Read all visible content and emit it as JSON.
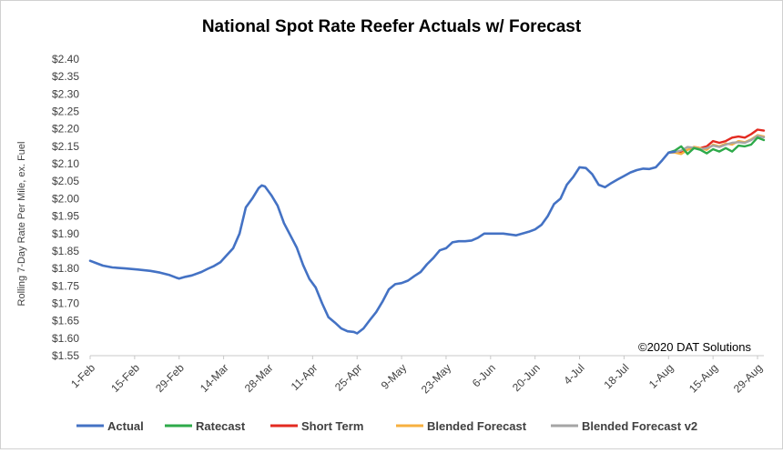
{
  "chart_data": {
    "type": "line",
    "title": "National Spot Rate Reefer Actuals w/ Forecast",
    "ylabel": "Rolling 7-Day Rate Per Mile, ex. Fuel",
    "xlabel": "",
    "annotation": "©2020 DAT Solutions",
    "ylim": [
      1.55,
      2.4
    ],
    "yticks": [
      "$1.55",
      "$1.60",
      "$1.65",
      "$1.70",
      "$1.75",
      "$1.80",
      "$1.85",
      "$1.90",
      "$1.95",
      "$2.00",
      "$2.05",
      "$2.10",
      "$2.15",
      "$2.20",
      "$2.25",
      "$2.30",
      "$2.35",
      "$2.40"
    ],
    "x_start": "2020-02-01",
    "x_end": "2020-08-31",
    "xticks": [
      {
        "date": "2020-02-01",
        "label": "1-Feb"
      },
      {
        "date": "2020-02-15",
        "label": "15-Feb"
      },
      {
        "date": "2020-02-29",
        "label": "29-Feb"
      },
      {
        "date": "2020-03-14",
        "label": "14-Mar"
      },
      {
        "date": "2020-03-28",
        "label": "28-Mar"
      },
      {
        "date": "2020-04-11",
        "label": "11-Apr"
      },
      {
        "date": "2020-04-25",
        "label": "25-Apr"
      },
      {
        "date": "2020-05-09",
        "label": "9-May"
      },
      {
        "date": "2020-05-23",
        "label": "23-May"
      },
      {
        "date": "2020-06-06",
        "label": "6-Jun"
      },
      {
        "date": "2020-06-20",
        "label": "20-Jun"
      },
      {
        "date": "2020-07-04",
        "label": "4-Jul"
      },
      {
        "date": "2020-07-18",
        "label": "18-Jul"
      },
      {
        "date": "2020-08-01",
        "label": "1-Aug"
      },
      {
        "date": "2020-08-15",
        "label": "15-Aug"
      },
      {
        "date": "2020-08-29",
        "label": "29-Aug"
      }
    ],
    "legend_position": "bottom",
    "grid": false,
    "series": [
      {
        "name": "Actual",
        "color": "#4472C4",
        "points": [
          [
            "2020-02-01",
            1.822
          ],
          [
            "2020-02-03",
            1.815
          ],
          [
            "2020-02-05",
            1.808
          ],
          [
            "2020-02-08",
            1.803
          ],
          [
            "2020-02-12",
            1.8
          ],
          [
            "2020-02-16",
            1.797
          ],
          [
            "2020-02-20",
            1.793
          ],
          [
            "2020-02-23",
            1.788
          ],
          [
            "2020-02-26",
            1.781
          ],
          [
            "2020-02-28",
            1.774
          ],
          [
            "2020-02-29",
            1.771
          ],
          [
            "2020-03-02",
            1.776
          ],
          [
            "2020-03-04",
            1.78
          ],
          [
            "2020-03-07",
            1.79
          ],
          [
            "2020-03-09",
            1.799
          ],
          [
            "2020-03-11",
            1.807
          ],
          [
            "2020-03-13",
            1.818
          ],
          [
            "2020-03-15",
            1.838
          ],
          [
            "2020-03-17",
            1.858
          ],
          [
            "2020-03-19",
            1.9
          ],
          [
            "2020-03-21",
            1.975
          ],
          [
            "2020-03-23",
            2.0
          ],
          [
            "2020-03-25",
            2.03
          ],
          [
            "2020-03-26",
            2.038
          ],
          [
            "2020-03-27",
            2.035
          ],
          [
            "2020-03-29",
            2.01
          ],
          [
            "2020-03-31",
            1.98
          ],
          [
            "2020-04-02",
            1.93
          ],
          [
            "2020-04-04",
            1.895
          ],
          [
            "2020-04-06",
            1.86
          ],
          [
            "2020-04-08",
            1.81
          ],
          [
            "2020-04-10",
            1.77
          ],
          [
            "2020-04-12",
            1.745
          ],
          [
            "2020-04-14",
            1.7
          ],
          [
            "2020-04-16",
            1.66
          ],
          [
            "2020-04-18",
            1.645
          ],
          [
            "2020-04-20",
            1.628
          ],
          [
            "2020-04-22",
            1.62
          ],
          [
            "2020-04-24",
            1.618
          ],
          [
            "2020-04-25",
            1.614
          ],
          [
            "2020-04-27",
            1.628
          ],
          [
            "2020-04-29",
            1.652
          ],
          [
            "2020-05-01",
            1.675
          ],
          [
            "2020-05-03",
            1.705
          ],
          [
            "2020-05-05",
            1.74
          ],
          [
            "2020-05-07",
            1.755
          ],
          [
            "2020-05-09",
            1.758
          ],
          [
            "2020-05-11",
            1.765
          ],
          [
            "2020-05-13",
            1.778
          ],
          [
            "2020-05-15",
            1.79
          ],
          [
            "2020-05-17",
            1.812
          ],
          [
            "2020-05-19",
            1.83
          ],
          [
            "2020-05-21",
            1.852
          ],
          [
            "2020-05-23",
            1.858
          ],
          [
            "2020-05-25",
            1.875
          ],
          [
            "2020-05-27",
            1.878
          ],
          [
            "2020-05-29",
            1.878
          ],
          [
            "2020-05-31",
            1.88
          ],
          [
            "2020-06-02",
            1.888
          ],
          [
            "2020-06-04",
            1.9
          ],
          [
            "2020-06-06",
            1.9
          ],
          [
            "2020-06-10",
            1.9
          ],
          [
            "2020-06-14",
            1.895
          ],
          [
            "2020-06-18",
            1.905
          ],
          [
            "2020-06-20",
            1.912
          ],
          [
            "2020-06-22",
            1.925
          ],
          [
            "2020-06-24",
            1.95
          ],
          [
            "2020-06-26",
            1.985
          ],
          [
            "2020-06-28",
            2.0
          ],
          [
            "2020-06-30",
            2.04
          ],
          [
            "2020-07-02",
            2.062
          ],
          [
            "2020-07-04",
            2.09
          ],
          [
            "2020-07-06",
            2.088
          ],
          [
            "2020-07-08",
            2.07
          ],
          [
            "2020-07-10",
            2.04
          ],
          [
            "2020-07-12",
            2.033
          ],
          [
            "2020-07-14",
            2.045
          ],
          [
            "2020-07-16",
            2.055
          ],
          [
            "2020-07-18",
            2.065
          ],
          [
            "2020-07-20",
            2.075
          ],
          [
            "2020-07-22",
            2.082
          ],
          [
            "2020-07-24",
            2.086
          ],
          [
            "2020-07-26",
            2.085
          ],
          [
            "2020-07-28",
            2.09
          ],
          [
            "2020-07-30",
            2.11
          ],
          [
            "2020-08-01",
            2.132
          ],
          [
            "2020-08-03",
            2.135
          ]
        ]
      },
      {
        "name": "Ratecast",
        "color": "#2EAA4A",
        "points": [
          [
            "2020-08-01",
            2.132
          ],
          [
            "2020-08-03",
            2.138
          ],
          [
            "2020-08-05",
            2.15
          ],
          [
            "2020-08-07",
            2.128
          ],
          [
            "2020-08-09",
            2.145
          ],
          [
            "2020-08-11",
            2.14
          ],
          [
            "2020-08-13",
            2.13
          ],
          [
            "2020-08-15",
            2.142
          ],
          [
            "2020-08-17",
            2.135
          ],
          [
            "2020-08-19",
            2.145
          ],
          [
            "2020-08-21",
            2.135
          ],
          [
            "2020-08-23",
            2.152
          ],
          [
            "2020-08-25",
            2.15
          ],
          [
            "2020-08-27",
            2.155
          ],
          [
            "2020-08-29",
            2.175
          ],
          [
            "2020-08-31",
            2.168
          ]
        ]
      },
      {
        "name": "Short Term",
        "color": "#E32A20",
        "points": [
          [
            "2020-08-01",
            2.132
          ],
          [
            "2020-08-03",
            2.136
          ],
          [
            "2020-08-05",
            2.132
          ],
          [
            "2020-08-07",
            2.14
          ],
          [
            "2020-08-09",
            2.148
          ],
          [
            "2020-08-11",
            2.145
          ],
          [
            "2020-08-13",
            2.15
          ],
          [
            "2020-08-15",
            2.165
          ],
          [
            "2020-08-17",
            2.16
          ],
          [
            "2020-08-19",
            2.165
          ],
          [
            "2020-08-21",
            2.175
          ],
          [
            "2020-08-23",
            2.178
          ],
          [
            "2020-08-25",
            2.175
          ],
          [
            "2020-08-27",
            2.185
          ],
          [
            "2020-08-29",
            2.198
          ],
          [
            "2020-08-31",
            2.195
          ]
        ]
      },
      {
        "name": "Blended Forecast",
        "color": "#F7B03F",
        "points": [
          [
            "2020-08-01",
            2.132
          ],
          [
            "2020-08-03",
            2.132
          ],
          [
            "2020-08-05",
            2.128
          ],
          [
            "2020-08-07",
            2.14
          ],
          [
            "2020-08-09",
            2.148
          ],
          [
            "2020-08-11",
            2.145
          ],
          [
            "2020-08-13",
            2.14
          ],
          [
            "2020-08-15",
            2.155
          ],
          [
            "2020-08-17",
            2.15
          ],
          [
            "2020-08-19",
            2.158
          ],
          [
            "2020-08-21",
            2.155
          ],
          [
            "2020-08-23",
            2.165
          ],
          [
            "2020-08-25",
            2.162
          ],
          [
            "2020-08-27",
            2.17
          ],
          [
            "2020-08-29",
            2.182
          ],
          [
            "2020-08-31",
            2.178
          ]
        ]
      },
      {
        "name": "Blended Forecast v2",
        "color": "#A5A5A5",
        "points": [
          [
            "2020-08-01",
            2.132
          ],
          [
            "2020-08-03",
            2.134
          ],
          [
            "2020-08-05",
            2.138
          ],
          [
            "2020-08-07",
            2.148
          ],
          [
            "2020-08-09",
            2.146
          ],
          [
            "2020-08-11",
            2.142
          ],
          [
            "2020-08-13",
            2.145
          ],
          [
            "2020-08-15",
            2.152
          ],
          [
            "2020-08-17",
            2.148
          ],
          [
            "2020-08-19",
            2.155
          ],
          [
            "2020-08-21",
            2.16
          ],
          [
            "2020-08-23",
            2.162
          ],
          [
            "2020-08-25",
            2.16
          ],
          [
            "2020-08-27",
            2.168
          ],
          [
            "2020-08-29",
            2.18
          ],
          [
            "2020-08-31",
            2.176
          ]
        ]
      }
    ]
  }
}
